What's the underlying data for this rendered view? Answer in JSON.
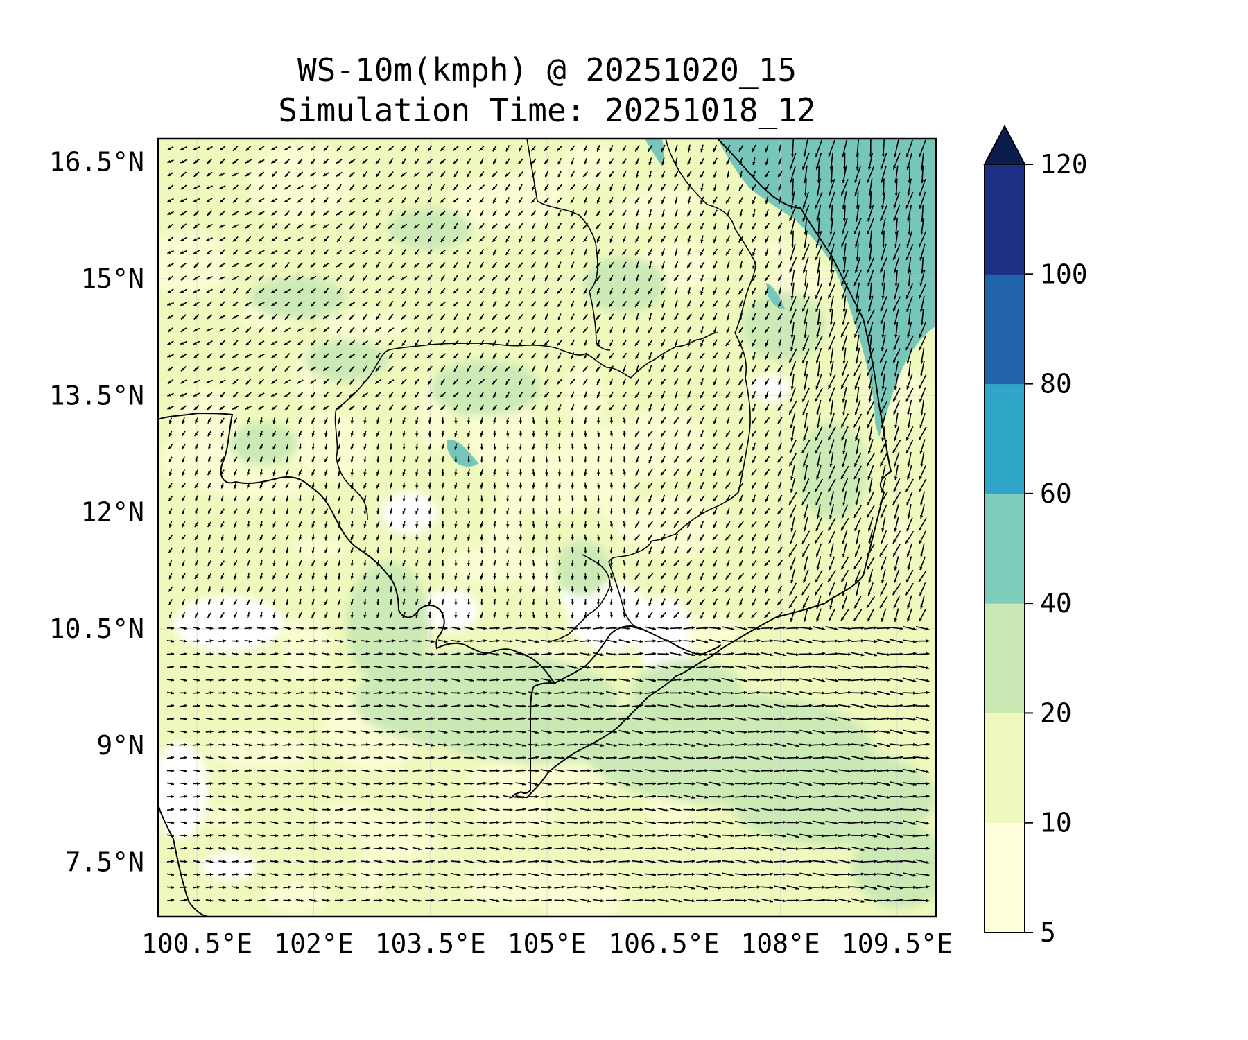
{
  "title": {
    "line1": "WS-10m(kmph) @ 20251020_15",
    "line2": "Simulation Time: 20251018_12"
  },
  "map": {
    "variable": "10 m wind speed",
    "units": "kmph",
    "lon_range": [
      100.0,
      110.0
    ],
    "lat_range": [
      6.8,
      16.8
    ],
    "lat_ticks": [
      {
        "value": 16.5,
        "label": "16.5°N"
      },
      {
        "value": 15.0,
        "label": "15°N"
      },
      {
        "value": 13.5,
        "label": "13.5°N"
      },
      {
        "value": 12.0,
        "label": "12°N"
      },
      {
        "value": 10.5,
        "label": "10.5°N"
      },
      {
        "value": 9.0,
        "label": "9°N"
      },
      {
        "value": 7.5,
        "label": "7.5°N"
      }
    ],
    "lon_ticks": [
      {
        "value": 100.5,
        "label": "100.5°E"
      },
      {
        "value": 102.0,
        "label": "102°E"
      },
      {
        "value": 103.5,
        "label": "103.5°E"
      },
      {
        "value": 105.0,
        "label": "105°E"
      },
      {
        "value": 106.5,
        "label": "106.5°E"
      },
      {
        "value": 108.0,
        "label": "108°E"
      },
      {
        "value": 109.5,
        "label": "109.5°E"
      }
    ]
  },
  "colorbar": {
    "levels": [
      5,
      10,
      20,
      40,
      60,
      80,
      100,
      120
    ],
    "labels": [
      "5",
      "10",
      "20",
      "40",
      "60",
      "80",
      "100",
      "120"
    ],
    "colors": [
      "#ffffd9",
      "#eff9bd",
      "#c9e9b4",
      "#7ecdbb",
      "#2fa5c7",
      "#2163aa",
      "#1d2f84"
    ],
    "extend_color": "#0b1d4f",
    "extend": "max"
  },
  "colors": {
    "ocean_high": "#76c6ba",
    "land_base": "#eff9bd",
    "calm": "#ffffff",
    "coastline": "#000000"
  }
}
